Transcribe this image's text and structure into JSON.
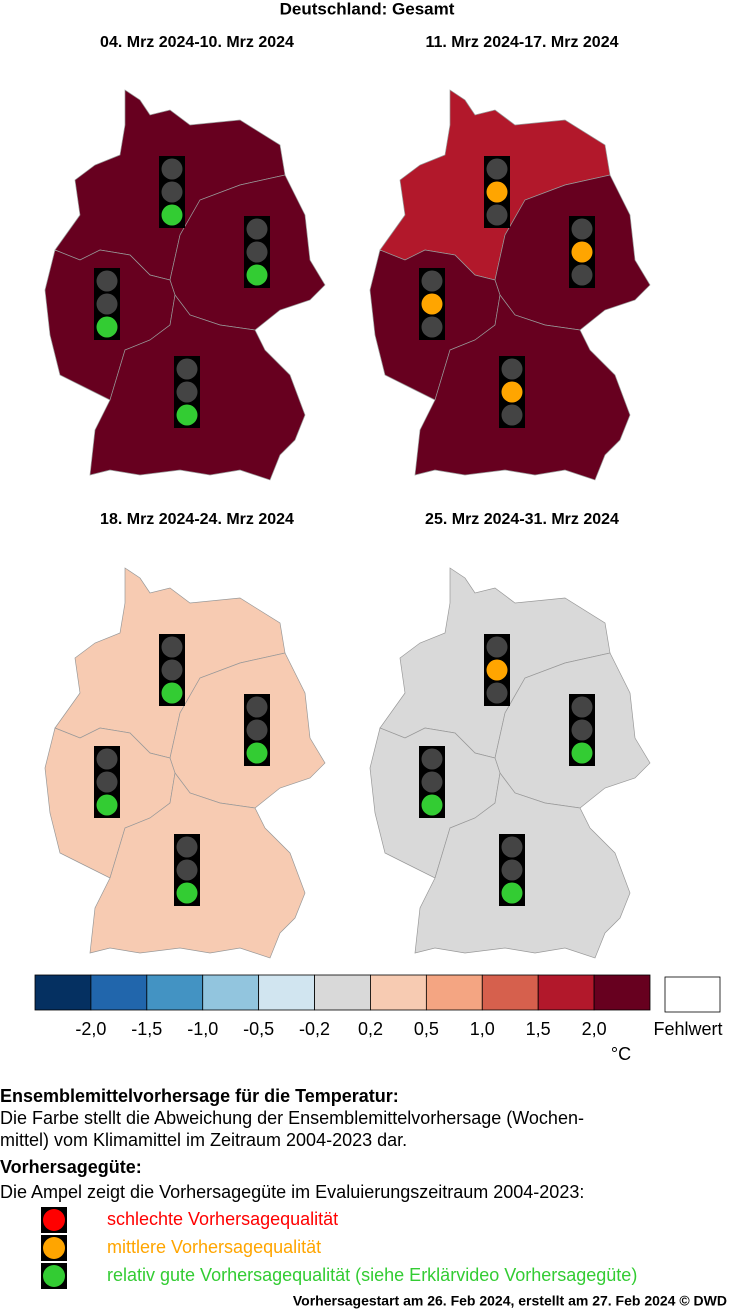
{
  "title": "Deutschland: Gesamt",
  "quality_colors": [
    "#ff0000",
    "#ffa500",
    "#33cc33"
  ],
  "lamp_off": "#444444",
  "panels": [
    {
      "period": "04. Mrz 2024-10. Mrz 2024",
      "regions": [
        {
          "fill": "#67001f",
          "quality": 2
        },
        {
          "fill": "#67001f",
          "quality": 2
        },
        {
          "fill": "#67001f",
          "quality": 2
        },
        {
          "fill": "#67001f",
          "quality": 2
        }
      ]
    },
    {
      "period": "11. Mrz 2024-17. Mrz 2024",
      "regions": [
        {
          "fill": "#b2182b",
          "quality": 1
        },
        {
          "fill": "#67001f",
          "quality": 1
        },
        {
          "fill": "#67001f",
          "quality": 1
        },
        {
          "fill": "#67001f",
          "quality": 1
        }
      ]
    },
    {
      "period": "18. Mrz 2024-24. Mrz 2024",
      "regions": [
        {
          "fill": "#f7cbb2",
          "quality": 2
        },
        {
          "fill": "#f7cbb2",
          "quality": 2
        },
        {
          "fill": "#f7cbb2",
          "quality": 2
        },
        {
          "fill": "#f7cbb2",
          "quality": 2
        }
      ]
    },
    {
      "period": "25. Mrz 2024-31. Mrz 2024",
      "regions": [
        {
          "fill": "#d9d9d9",
          "quality": 1
        },
        {
          "fill": "#d9d9d9",
          "quality": 2
        },
        {
          "fill": "#d9d9d9",
          "quality": 2
        },
        {
          "fill": "#d9d9d9",
          "quality": 2
        }
      ]
    }
  ],
  "colorbar": {
    "colors": [
      "#053061",
      "#2166ac",
      "#4393c3",
      "#92c5de",
      "#d1e5f0",
      "#d9d9d9",
      "#f7cbb2",
      "#f4a582",
      "#d6604d",
      "#b2182b",
      "#67001f"
    ],
    "labels": [
      "-2,0",
      "-1,5",
      "-1,0",
      "-0,5",
      "-0,2",
      "0,2",
      "0,5",
      "1,0",
      "1,5",
      "2,0"
    ],
    "unit": "°C",
    "missing": "Fehlwert"
  },
  "description": {
    "heading": "Ensemblemittelvorhersage für die Temperatur:",
    "lines": [
      "Die Farbe stellt die Abweichung der Ensemblemittelvorhersage (Wochen-",
      "mittel) vom Klimamittel im Zeitraum 2004-2023 dar."
    ]
  },
  "quality": {
    "heading": "Vorhersagegüte:",
    "intro": "Die Ampel zeigt die Vorhersagegüte im Evaluierungszeitraum 2004-2023:",
    "items": [
      "schlechte Vorhersagequalität",
      "mittlere Vorhersagequalität",
      "relativ gute Vorhersagequalität (siehe Erklärvideo Vorhersagegüte)"
    ]
  },
  "footer": "Vorhersagestart am 26. Feb 2024, erstellt am 27. Feb 2024 © DWD"
}
